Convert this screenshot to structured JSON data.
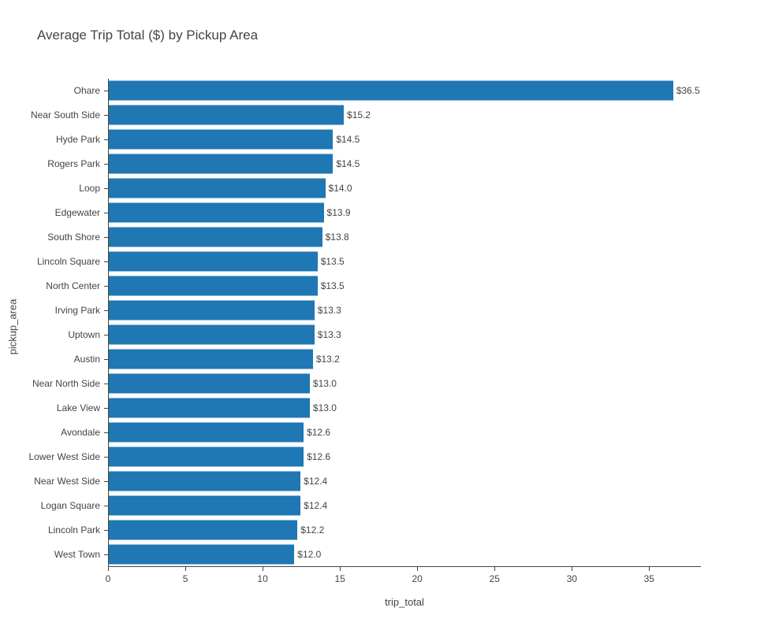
{
  "chart_data": {
    "type": "bar",
    "orientation": "horizontal",
    "title": "Average Trip Total ($) by Pickup Area",
    "xlabel": "trip_total",
    "ylabel": "pickup_area",
    "categories": [
      "Ohare",
      "Near South Side",
      "Hyde Park",
      "Rogers Park",
      "Loop",
      "Edgewater",
      "South Shore",
      "Lincoln Square",
      "North Center",
      "Irving Park",
      "Uptown",
      "Austin",
      "Near North Side",
      "Lake View",
      "Avondale",
      "Lower West Side",
      "Near West Side",
      "Logan Square",
      "Lincoln Park",
      "West Town"
    ],
    "values": [
      36.5,
      15.2,
      14.5,
      14.5,
      14.0,
      13.9,
      13.8,
      13.5,
      13.5,
      13.3,
      13.3,
      13.2,
      13.0,
      13.0,
      12.6,
      12.6,
      12.4,
      12.4,
      12.2,
      12.0
    ],
    "bar_labels": [
      "$36.5",
      "$15.2",
      "$14.5",
      "$14.5",
      "$14.0",
      "$13.9",
      "$13.8",
      "$13.5",
      "$13.5",
      "$13.3",
      "$13.3",
      "$13.2",
      "$13.0",
      "$13.0",
      "$12.6",
      "$12.6",
      "$12.4",
      "$12.4",
      "$12.2",
      "$12.0"
    ],
    "x_tick_labels": [
      "0",
      "5",
      "10",
      "15",
      "20",
      "25",
      "30",
      "35"
    ],
    "x_tick_values": [
      0,
      5,
      10,
      15,
      20,
      25,
      30,
      35
    ],
    "xlim": [
      0,
      38.3
    ],
    "grid": false,
    "legend": "none",
    "colors": {
      "bar": "#1f77b4",
      "text": "#444444",
      "axis": "#444444",
      "background": "#ffffff"
    }
  }
}
